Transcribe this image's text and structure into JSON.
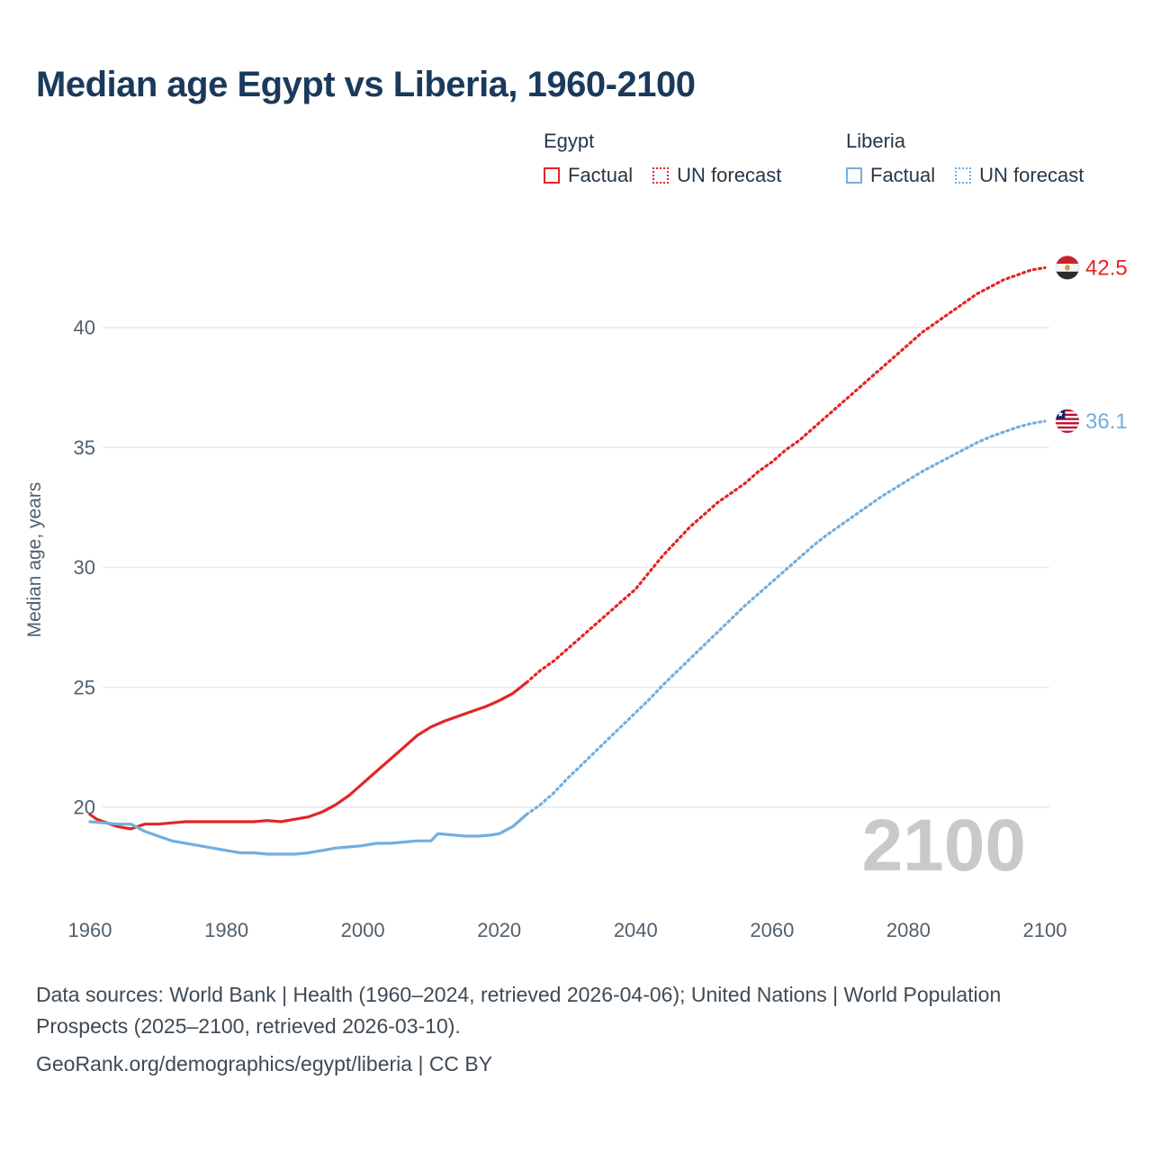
{
  "page": {
    "title": "Median age Egypt vs Liberia, 1960-2100",
    "watermark": "2100",
    "footer": {
      "sources": "Data sources: World Bank | Health (1960–2024, retrieved 2026-04-06); United Nations | World Population Prospects (2025–2100, retrieved 2026-03-10).",
      "attribution": "GeoRank.org/demographics/egypt/liberia | CC BY"
    }
  },
  "colors": {
    "egypt": "#e12624",
    "liberia": "#72aede",
    "title": "#1b3a5b",
    "axis_text": "#51606d",
    "gridline": "#e9e9e9",
    "watermark": "#c9c9c9",
    "footer_text": "#3e4a54"
  },
  "legend": {
    "groups": [
      {
        "name": "Egypt",
        "color": "#e12624",
        "items": [
          {
            "label": "Factual",
            "style": "solid"
          },
          {
            "label": "UN forecast",
            "style": "dotted"
          }
        ]
      },
      {
        "name": "Liberia",
        "color": "#72aede",
        "items": [
          {
            "label": "Factual",
            "style": "solid"
          },
          {
            "label": "UN forecast",
            "style": "dotted"
          }
        ]
      }
    ]
  },
  "chart_data": {
    "type": "line",
    "title": "Median age Egypt vs Liberia, 1960-2100",
    "xlabel": "",
    "ylabel": "Median age, years",
    "xlim": [
      1960,
      2100
    ],
    "ylim": [
      17.5,
      43.5
    ],
    "xticks": [
      1960,
      1980,
      2000,
      2020,
      2040,
      2060,
      2080,
      2100
    ],
    "yticks": [
      20,
      25,
      30,
      35,
      40
    ],
    "grid": "horizontal-only",
    "legend_position": "top",
    "series": [
      {
        "name": "Egypt Factual",
        "color": "#e12624",
        "style": "solid",
        "points": [
          [
            1960,
            19.7
          ],
          [
            1961,
            19.5
          ],
          [
            1962,
            19.4
          ],
          [
            1963,
            19.3
          ],
          [
            1964,
            19.2
          ],
          [
            1965,
            19.15
          ],
          [
            1966,
            19.1
          ],
          [
            1967,
            19.2
          ],
          [
            1968,
            19.3
          ],
          [
            1970,
            19.3
          ],
          [
            1972,
            19.35
          ],
          [
            1974,
            19.4
          ],
          [
            1976,
            19.4
          ],
          [
            1978,
            19.4
          ],
          [
            1980,
            19.4
          ],
          [
            1982,
            19.4
          ],
          [
            1984,
            19.4
          ],
          [
            1986,
            19.45
          ],
          [
            1988,
            19.4
          ],
          [
            1990,
            19.5
          ],
          [
            1992,
            19.6
          ],
          [
            1994,
            19.8
          ],
          [
            1996,
            20.1
          ],
          [
            1998,
            20.5
          ],
          [
            2000,
            21.0
          ],
          [
            2002,
            21.5
          ],
          [
            2004,
            22.0
          ],
          [
            2006,
            22.5
          ],
          [
            2008,
            23.0
          ],
          [
            2010,
            23.35
          ],
          [
            2012,
            23.6
          ],
          [
            2014,
            23.8
          ],
          [
            2016,
            24.0
          ],
          [
            2018,
            24.2
          ],
          [
            2020,
            24.45
          ],
          [
            2022,
            24.75
          ],
          [
            2024,
            25.2
          ]
        ]
      },
      {
        "name": "Egypt UN forecast",
        "color": "#e12624",
        "style": "dotted",
        "points": [
          [
            2024,
            25.2
          ],
          [
            2026,
            25.7
          ],
          [
            2028,
            26.1
          ],
          [
            2030,
            26.6
          ],
          [
            2032,
            27.1
          ],
          [
            2034,
            27.6
          ],
          [
            2036,
            28.1
          ],
          [
            2038,
            28.6
          ],
          [
            2040,
            29.1
          ],
          [
            2042,
            29.8
          ],
          [
            2044,
            30.5
          ],
          [
            2046,
            31.1
          ],
          [
            2048,
            31.7
          ],
          [
            2050,
            32.2
          ],
          [
            2052,
            32.7
          ],
          [
            2054,
            33.1
          ],
          [
            2056,
            33.5
          ],
          [
            2058,
            34.0
          ],
          [
            2060,
            34.4
          ],
          [
            2062,
            34.9
          ],
          [
            2064,
            35.3
          ],
          [
            2066,
            35.8
          ],
          [
            2068,
            36.3
          ],
          [
            2070,
            36.8
          ],
          [
            2072,
            37.3
          ],
          [
            2074,
            37.8
          ],
          [
            2076,
            38.3
          ],
          [
            2078,
            38.8
          ],
          [
            2080,
            39.3
          ],
          [
            2082,
            39.8
          ],
          [
            2084,
            40.2
          ],
          [
            2086,
            40.6
          ],
          [
            2088,
            41.0
          ],
          [
            2090,
            41.4
          ],
          [
            2092,
            41.7
          ],
          [
            2094,
            42.0
          ],
          [
            2096,
            42.2
          ],
          [
            2098,
            42.4
          ],
          [
            2100,
            42.5
          ]
        ]
      },
      {
        "name": "Liberia Factual",
        "color": "#72aede",
        "style": "solid",
        "points": [
          [
            1960,
            19.4
          ],
          [
            1962,
            19.35
          ],
          [
            1964,
            19.3
          ],
          [
            1966,
            19.3
          ],
          [
            1968,
            19.0
          ],
          [
            1970,
            18.8
          ],
          [
            1972,
            18.6
          ],
          [
            1974,
            18.5
          ],
          [
            1976,
            18.4
          ],
          [
            1978,
            18.3
          ],
          [
            1980,
            18.2
          ],
          [
            1982,
            18.1
          ],
          [
            1984,
            18.1
          ],
          [
            1986,
            18.05
          ],
          [
            1988,
            18.05
          ],
          [
            1990,
            18.05
          ],
          [
            1992,
            18.1
          ],
          [
            1994,
            18.2
          ],
          [
            1996,
            18.3
          ],
          [
            1998,
            18.35
          ],
          [
            2000,
            18.4
          ],
          [
            2002,
            18.5
          ],
          [
            2004,
            18.5
          ],
          [
            2006,
            18.55
          ],
          [
            2008,
            18.6
          ],
          [
            2010,
            18.6
          ],
          [
            2011,
            18.9
          ],
          [
            2013,
            18.85
          ],
          [
            2015,
            18.8
          ],
          [
            2017,
            18.8
          ],
          [
            2019,
            18.85
          ],
          [
            2020,
            18.9
          ],
          [
            2022,
            19.2
          ],
          [
            2024,
            19.7
          ]
        ]
      },
      {
        "name": "Liberia UN forecast",
        "color": "#72aede",
        "style": "dotted",
        "points": [
          [
            2024,
            19.7
          ],
          [
            2026,
            20.1
          ],
          [
            2028,
            20.6
          ],
          [
            2030,
            21.2
          ],
          [
            2032,
            21.75
          ],
          [
            2034,
            22.3
          ],
          [
            2036,
            22.85
          ],
          [
            2038,
            23.4
          ],
          [
            2040,
            23.95
          ],
          [
            2042,
            24.5
          ],
          [
            2044,
            25.1
          ],
          [
            2046,
            25.65
          ],
          [
            2048,
            26.2
          ],
          [
            2050,
            26.75
          ],
          [
            2052,
            27.3
          ],
          [
            2054,
            27.85
          ],
          [
            2056,
            28.4
          ],
          [
            2058,
            28.9
          ],
          [
            2060,
            29.4
          ],
          [
            2062,
            29.9
          ],
          [
            2064,
            30.4
          ],
          [
            2066,
            30.9
          ],
          [
            2068,
            31.35
          ],
          [
            2070,
            31.75
          ],
          [
            2072,
            32.15
          ],
          [
            2074,
            32.55
          ],
          [
            2076,
            32.95
          ],
          [
            2078,
            33.3
          ],
          [
            2080,
            33.65
          ],
          [
            2082,
            34.0
          ],
          [
            2084,
            34.3
          ],
          [
            2086,
            34.6
          ],
          [
            2088,
            34.9
          ],
          [
            2090,
            35.2
          ],
          [
            2092,
            35.45
          ],
          [
            2094,
            35.65
          ],
          [
            2096,
            35.85
          ],
          [
            2098,
            36.0
          ],
          [
            2100,
            36.1
          ]
        ]
      }
    ],
    "end_labels": [
      {
        "series": "Egypt",
        "flag": "egypt",
        "value": "42.5",
        "numeric": 42.5,
        "color": "#e12624"
      },
      {
        "series": "Liberia",
        "flag": "liberia",
        "value": "36.1",
        "numeric": 36.1,
        "color": "#72aede"
      }
    ]
  }
}
